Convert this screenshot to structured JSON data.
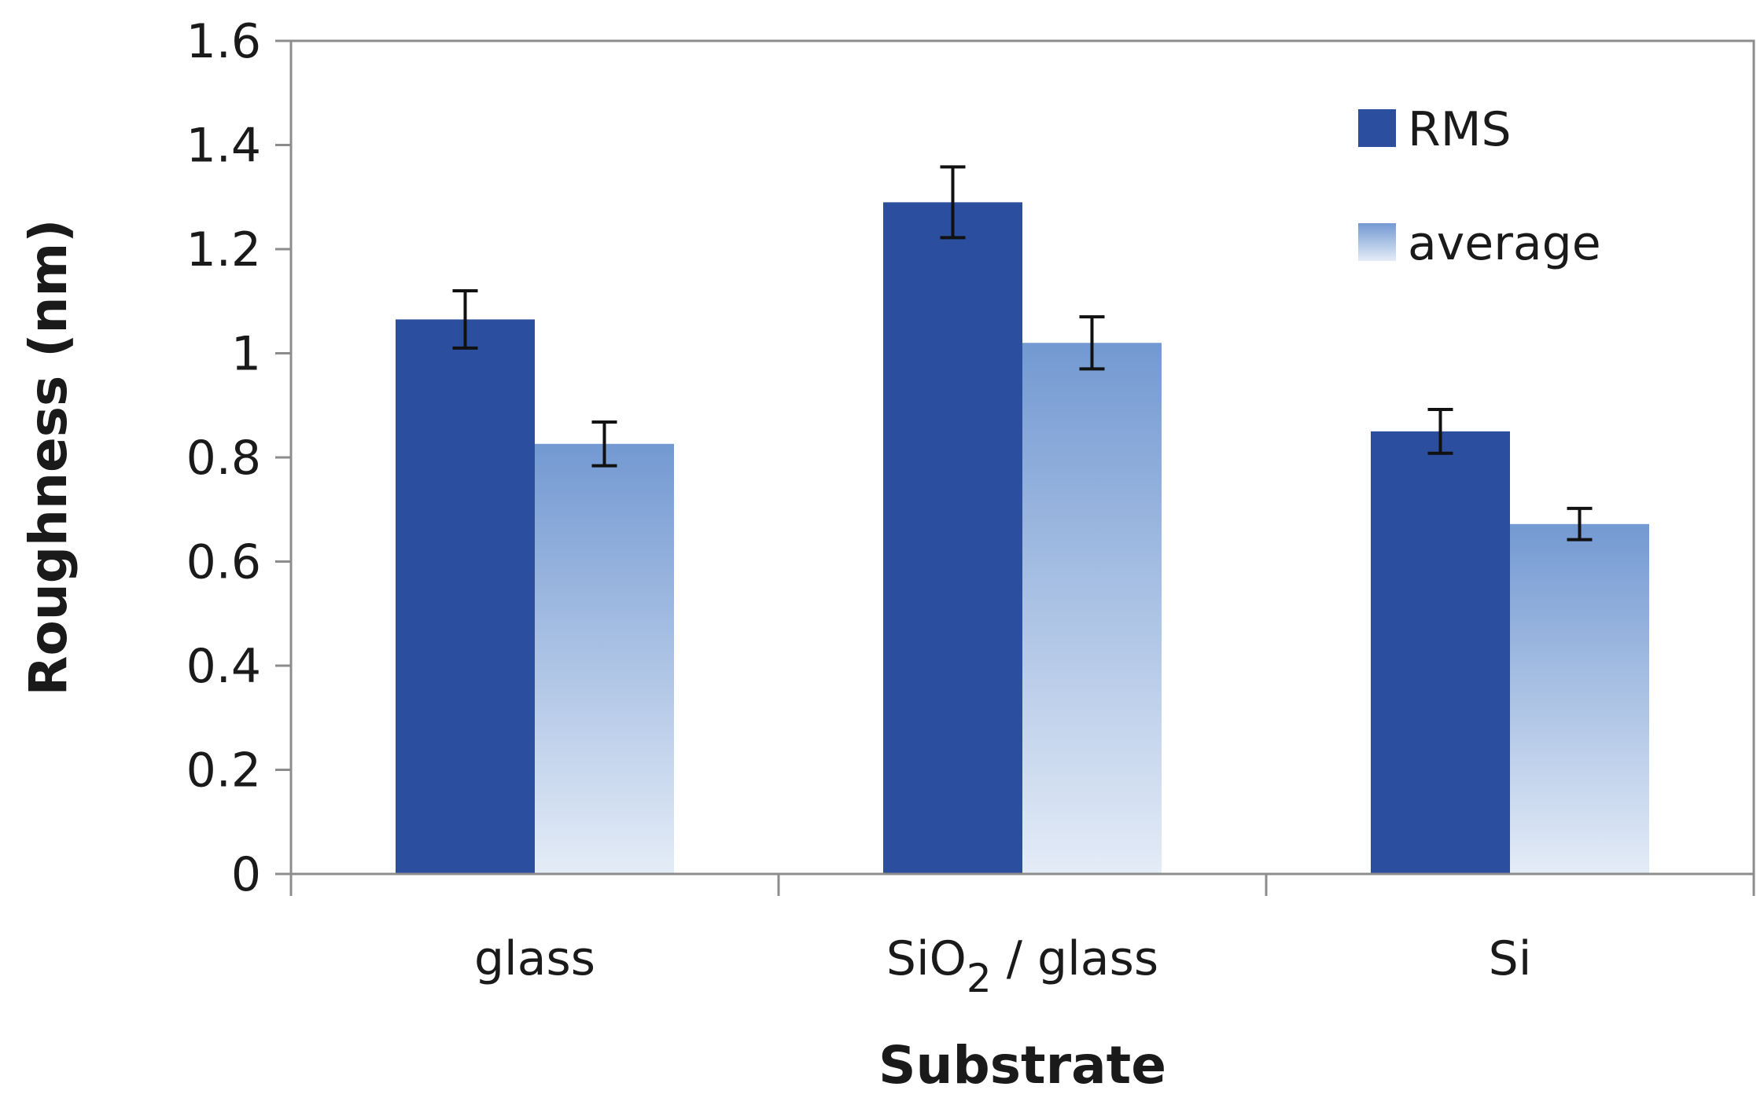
{
  "chart_data": {
    "type": "bar",
    "title": "",
    "xlabel": "Substrate",
    "ylabel": "Roughness (nm)",
    "ylim": [
      0,
      1.6
    ],
    "yticks": [
      "0",
      "0.2",
      "0.4",
      "0.6",
      "0.8",
      "1",
      "1.2",
      "1.4",
      "1.6"
    ],
    "ytick_values": [
      0,
      0.2,
      0.4,
      0.6,
      0.8,
      1.0,
      1.2,
      1.4,
      1.6
    ],
    "grid": false,
    "legend_position": "top-right",
    "categories": [
      {
        "main": "glass",
        "sub": "",
        "rest": ""
      },
      {
        "main": "SiO",
        "sub": "2",
        "rest": " / glass"
      },
      {
        "main": "Si",
        "sub": "",
        "rest": ""
      }
    ],
    "series": [
      {
        "name": "RMS",
        "color": "#2b4f9e",
        "values": [
          1.065,
          1.29,
          0.85
        ],
        "errors": [
          0.055,
          0.068,
          0.042
        ]
      },
      {
        "name": "average",
        "color_top": "#7399d2",
        "color_bottom": "#e4ecf7",
        "values": [
          0.826,
          1.02,
          0.672
        ],
        "errors": [
          0.042,
          0.05,
          0.03
        ]
      }
    ]
  }
}
